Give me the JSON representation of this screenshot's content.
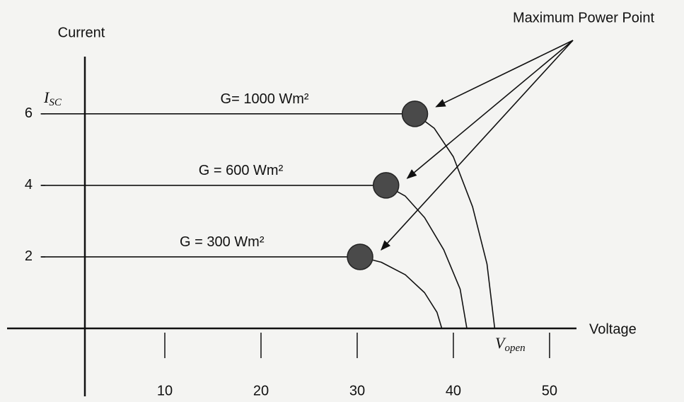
{
  "chart_data": {
    "type": "line",
    "y_axis_label": "Current",
    "x_axis_label": "Voltage",
    "annotation": "Maximum Power Point",
    "isc_symbol": "I",
    "isc_subscript": "SC",
    "voc_symbol": "V",
    "voc_subscript": "open",
    "xlim": [
      -6.4,
      52.8
    ],
    "ylim": [
      -1.9,
      7.6
    ],
    "xticks": [
      10,
      20,
      30,
      40,
      50
    ],
    "yticks": [
      2,
      4,
      6
    ],
    "color": "#111111",
    "mpp_color": "#4a4a4a",
    "series": [
      {
        "name": "G= 1000 Wm²",
        "x": [
          -2.9,
          36,
          38,
          40,
          42,
          43.5,
          44.3
        ],
        "values": [
          6,
          6,
          5.6,
          4.8,
          3.4,
          1.8,
          0
        ],
        "mpp_x": 36,
        "mpp_y": 6
      },
      {
        "name": "G = 600 Wm²",
        "x": [
          -2.9,
          33,
          35,
          37,
          39,
          40.7,
          41.4
        ],
        "values": [
          4,
          4,
          3.7,
          3.1,
          2.2,
          1.1,
          0
        ],
        "mpp_x": 33,
        "mpp_y": 4
      },
      {
        "name": "G = 300 Wm²",
        "x": [
          -2.9,
          30.3,
          32.5,
          35,
          37,
          38.3,
          38.8
        ],
        "values": [
          2,
          2,
          1.85,
          1.5,
          1.0,
          0.45,
          0
        ]
      }
    ]
  }
}
